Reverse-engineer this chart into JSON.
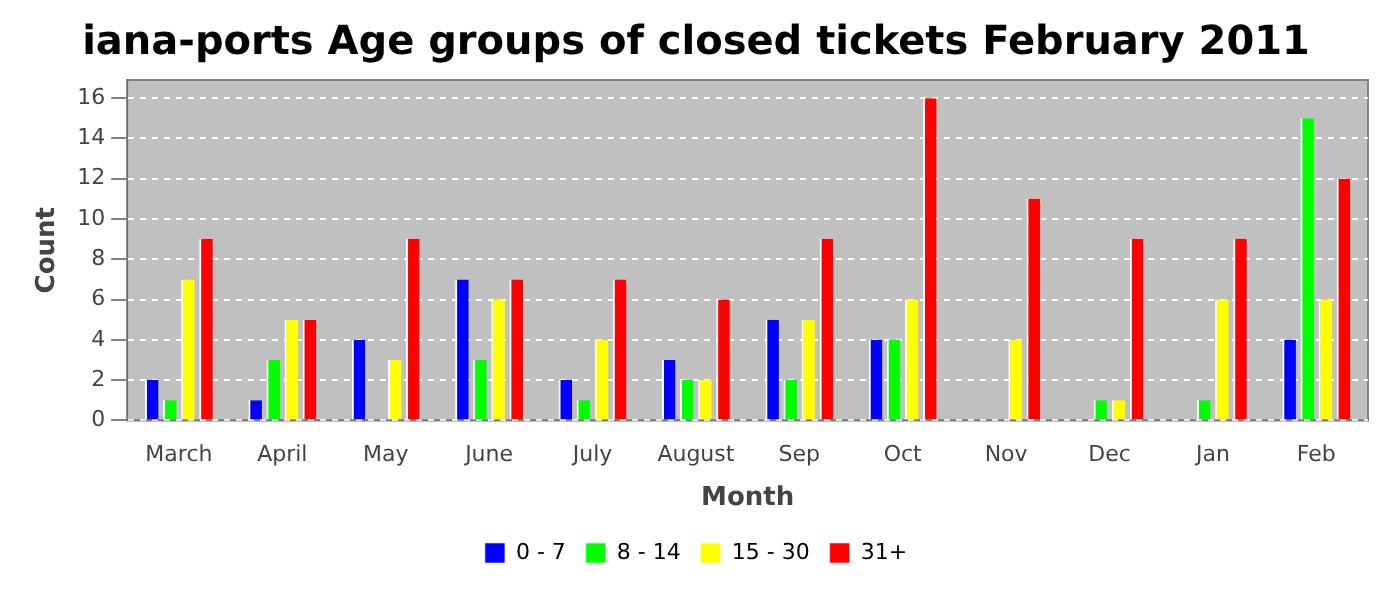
{
  "chart_data": {
    "type": "bar",
    "title": "iana-ports Age groups of closed tickets February 2011",
    "xlabel": "Month",
    "ylabel": "Count",
    "categories": [
      "March",
      "April",
      "May",
      "June",
      "July",
      "August",
      "Sep",
      "Oct",
      "Nov",
      "Dec",
      "Jan",
      "Feb"
    ],
    "series": [
      {
        "name": "0 - 7",
        "color": "#0000ff",
        "values": [
          2,
          1,
          4,
          7,
          2,
          3,
          5,
          4,
          0,
          0,
          0,
          4
        ]
      },
      {
        "name": "8 - 14",
        "color": "#00ff00",
        "values": [
          1,
          3,
          0,
          3,
          1,
          2,
          2,
          4,
          0,
          1,
          1,
          15
        ]
      },
      {
        "name": "15 - 30",
        "color": "#ffff00",
        "values": [
          7,
          5,
          3,
          6,
          4,
          2,
          5,
          6,
          4,
          1,
          6,
          6
        ]
      },
      {
        "name": "31+",
        "color": "#ff0000",
        "values": [
          9,
          5,
          9,
          7,
          7,
          6,
          9,
          16,
          11,
          9,
          9,
          12
        ]
      }
    ],
    "ylim": [
      0,
      16.9
    ],
    "yticks": [
      0,
      2,
      4,
      6,
      8,
      10,
      12,
      14,
      16
    ],
    "grid": "y",
    "legend": "bottom"
  }
}
